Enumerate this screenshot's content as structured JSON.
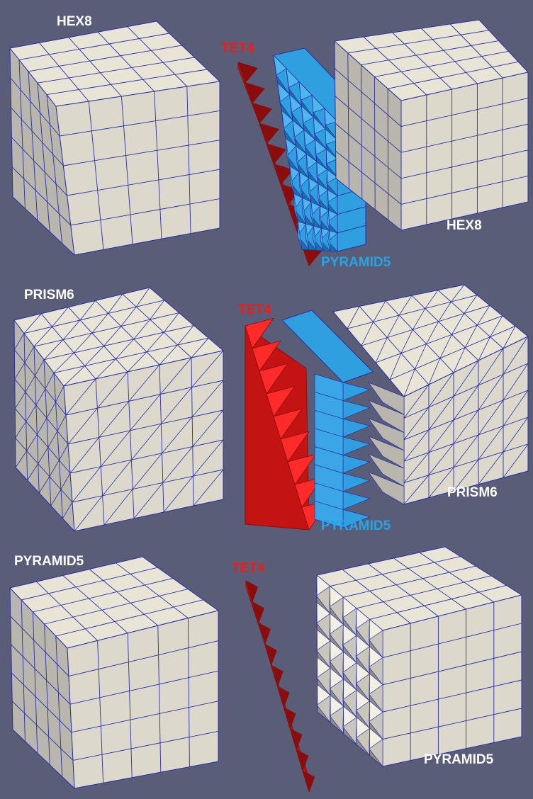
{
  "colors": {
    "background": "#5a5d77",
    "grid_line": "#2b2fa6",
    "mesh_top": "#e8e4d6",
    "mesh_front": "#dcd9cc",
    "mesh_side": "#b8b6ad",
    "tet_face": "#c41313",
    "tet_dark": "#8a0d0d",
    "pyramid_face": "#2f9fe0",
    "pyramid_dark": "#1b6fa8"
  },
  "panels": [
    {
      "left": {
        "label": "HEX8"
      },
      "right": {
        "tet_label": "TET4",
        "middle_label": "PYRAMID5",
        "block_label": "HEX8"
      }
    },
    {
      "left": {
        "label": "PRISM6"
      },
      "right": {
        "tet_label": "TET4",
        "middle_label": "PYRAMID5",
        "block_label": "PRISM6"
      }
    },
    {
      "left": {
        "label": "PYRAMID5"
      },
      "right": {
        "tet_label": "TET4",
        "block_label": "PYRAMID5"
      }
    }
  ],
  "icons": [
    "hex8-mesh-cube",
    "prism6-mesh-cube",
    "pyramid5-mesh-cube",
    "tet4-layer",
    "pyramid5-layer",
    "interface-block"
  ]
}
